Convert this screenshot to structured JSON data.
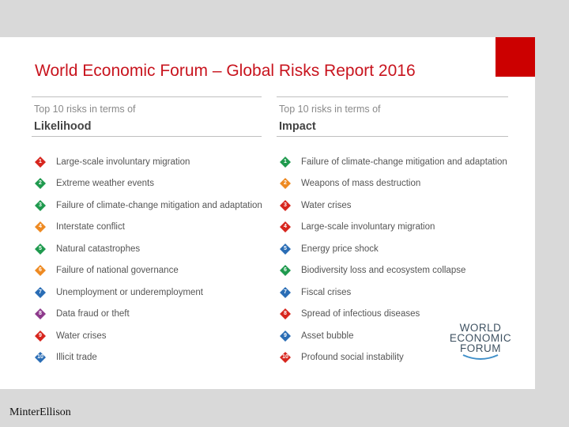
{
  "slide": {
    "title": "World Economic Forum – Global Risks Report 2016",
    "accent_color": "#cc0000",
    "title_color": "#c8141e"
  },
  "likelihood": {
    "subtitle": "Top 10 risks in terms of",
    "heading": "Likelihood",
    "items": [
      {
        "rank": "1",
        "label": "Large-scale involuntary migration",
        "color": "#d7261e"
      },
      {
        "rank": "2",
        "label": "Extreme weather events",
        "color": "#1f9a4e"
      },
      {
        "rank": "3",
        "label": "Failure of climate-change mitigation and adaptation",
        "color": "#1f9a4e"
      },
      {
        "rank": "4",
        "label": "Interstate conflict",
        "color": "#ee8a22"
      },
      {
        "rank": "5",
        "label": "Natural catastrophes",
        "color": "#1f9a4e"
      },
      {
        "rank": "6",
        "label": "Failure of national governance",
        "color": "#ee8a22"
      },
      {
        "rank": "7",
        "label": "Unemployment or underemployment",
        "color": "#2a6db5"
      },
      {
        "rank": "8",
        "label": "Data fraud or theft",
        "color": "#8e3a8c"
      },
      {
        "rank": "9",
        "label": "Water crises",
        "color": "#d7261e"
      },
      {
        "rank": "10",
        "label": "Illicit trade",
        "color": "#2a6db5"
      }
    ]
  },
  "impact": {
    "subtitle": "Top 10 risks in terms of",
    "heading": "Impact",
    "items": [
      {
        "rank": "1",
        "label": "Failure of climate-change mitigation and adaptation",
        "color": "#1f9a4e"
      },
      {
        "rank": "2",
        "label": "Weapons of mass destruction",
        "color": "#ee8a22"
      },
      {
        "rank": "3",
        "label": "Water crises",
        "color": "#d7261e"
      },
      {
        "rank": "4",
        "label": "Large-scale involuntary migration",
        "color": "#d7261e"
      },
      {
        "rank": "5",
        "label": "Energy price shock",
        "color": "#2a6db5"
      },
      {
        "rank": "6",
        "label": "Biodiversity loss and ecosystem collapse",
        "color": "#1f9a4e"
      },
      {
        "rank": "7",
        "label": "Fiscal crises",
        "color": "#2a6db5"
      },
      {
        "rank": "8",
        "label": "Spread of infectious diseases",
        "color": "#d7261e"
      },
      {
        "rank": "9",
        "label": "Asset bubble",
        "color": "#2a6db5"
      },
      {
        "rank": "10",
        "label": "Profound social instability",
        "color": "#d7261e"
      }
    ]
  },
  "wef_logo": {
    "line1": "WORLD",
    "line2": "ECONOMIC",
    "line3": "FORUM"
  },
  "footer": {
    "brand": "MinterEllison"
  }
}
